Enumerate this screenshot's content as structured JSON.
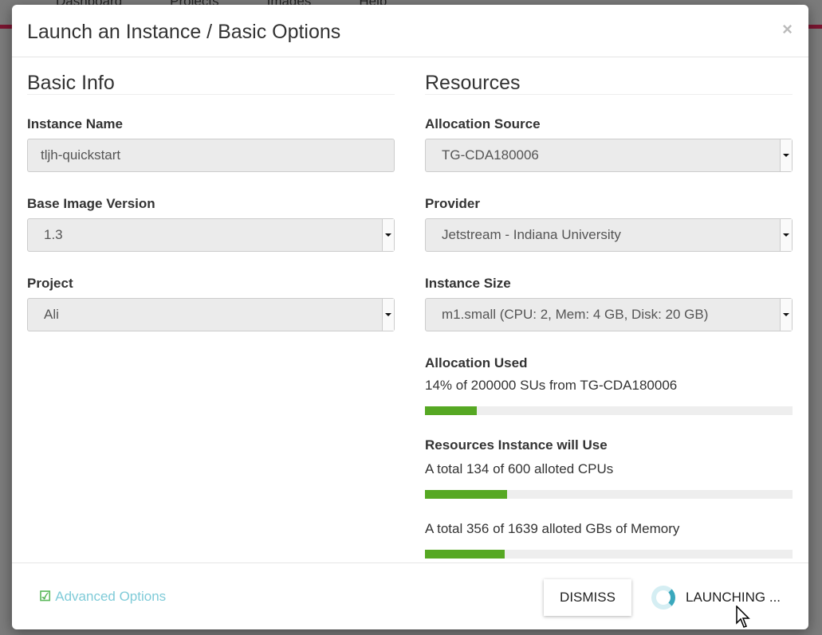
{
  "background_nav": [
    "Dashboard",
    "Projects",
    "Images",
    "Help"
  ],
  "modal": {
    "title": "Launch an Instance / Basic Options",
    "close": "×",
    "basic_info": {
      "heading": "Basic Info",
      "instance_name_label": "Instance Name",
      "instance_name_value": "tljh-quickstart",
      "base_image_label": "Base Image Version",
      "base_image_value": "1.3",
      "project_label": "Project",
      "project_value": "Ali"
    },
    "resources": {
      "heading": "Resources",
      "allocation_source_label": "Allocation Source",
      "allocation_source_value": "TG-CDA180006",
      "provider_label": "Provider",
      "provider_value": "Jetstream - Indiana University",
      "instance_size_label": "Instance Size",
      "instance_size_value": "m1.small (CPU: 2, Mem: 4 GB, Disk: 20 GB)",
      "allocation_used_label": "Allocation Used",
      "allocation_used_text": "14% of 200000 SUs from TG-CDA180006",
      "allocation_used_percent": 14,
      "will_use_label": "Resources Instance will Use",
      "cpu_text": "A total 134 of 600 alloted CPUs",
      "cpu_percent": 22.3,
      "mem_text": "A total 356 of 1639 alloted GBs of Memory",
      "mem_percent": 21.7
    },
    "footer": {
      "advanced": "Advanced Options",
      "dismiss": "DISMISS",
      "launching": "LAUNCHING ..."
    }
  },
  "colors": {
    "progress": "#56a823",
    "link": "#7fcbd8",
    "spinner": "#3aa8bd"
  }
}
